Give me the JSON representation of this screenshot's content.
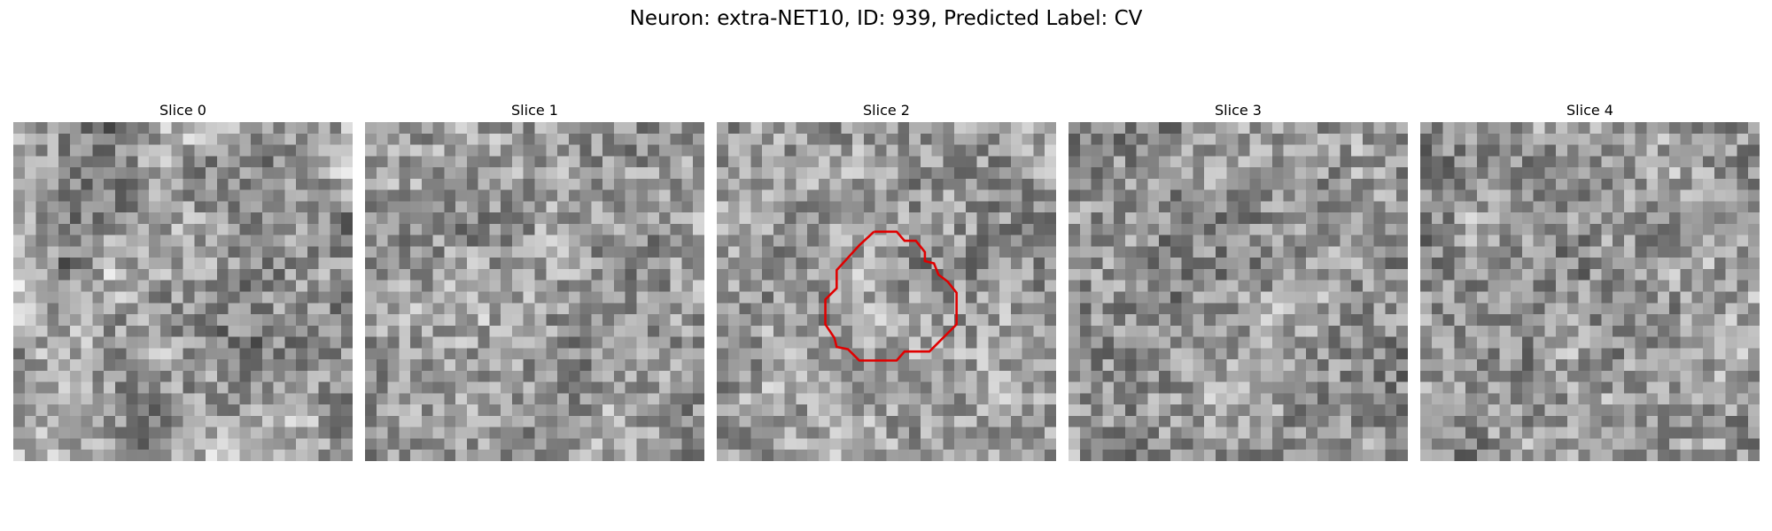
{
  "title": "Neuron: extra-NET10, ID: 939, Predicted Label: CV",
  "panels": [
    {
      "title": "Slice 0"
    },
    {
      "title": "Slice 1"
    },
    {
      "title": "Slice 2"
    },
    {
      "title": "Slice 3"
    },
    {
      "title": "Slice 4"
    }
  ]
}
